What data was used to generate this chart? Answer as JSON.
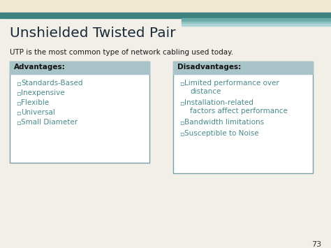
{
  "title": "Unshielded Twisted Pair",
  "subtitle": "UTP is the most common type of network cabling used today.",
  "bg_color": "#f2efe9",
  "title_color": "#1a2a3a",
  "subtitle_color": "#1a1a1a",
  "header_bg": "#a8c4c8",
  "box_border": "#7a9fa6",
  "adv_header": "Advantages:",
  "dis_header": "Disadvantages:",
  "header_text_color": "#111111",
  "bullet_color": "#4a8a8a",
  "bullet_char": "▫",
  "advantages": [
    "Standards-Based",
    "Inexpensive",
    "Flexible",
    "Universal",
    "Small Diameter"
  ],
  "dis_items": [
    [
      "Limited performance over",
      "distance"
    ],
    [
      "Installation-related",
      "factors affect performance"
    ],
    [
      "Bandwidth limitations"
    ],
    [
      "Susceptible to Noise"
    ]
  ],
  "page_num": "73",
  "top_beige_color": "#f0e8d0",
  "top_teal_dark": "#3d8080",
  "top_teal_mid": "#6aabaa",
  "top_teal_light": "#8ec0bf"
}
